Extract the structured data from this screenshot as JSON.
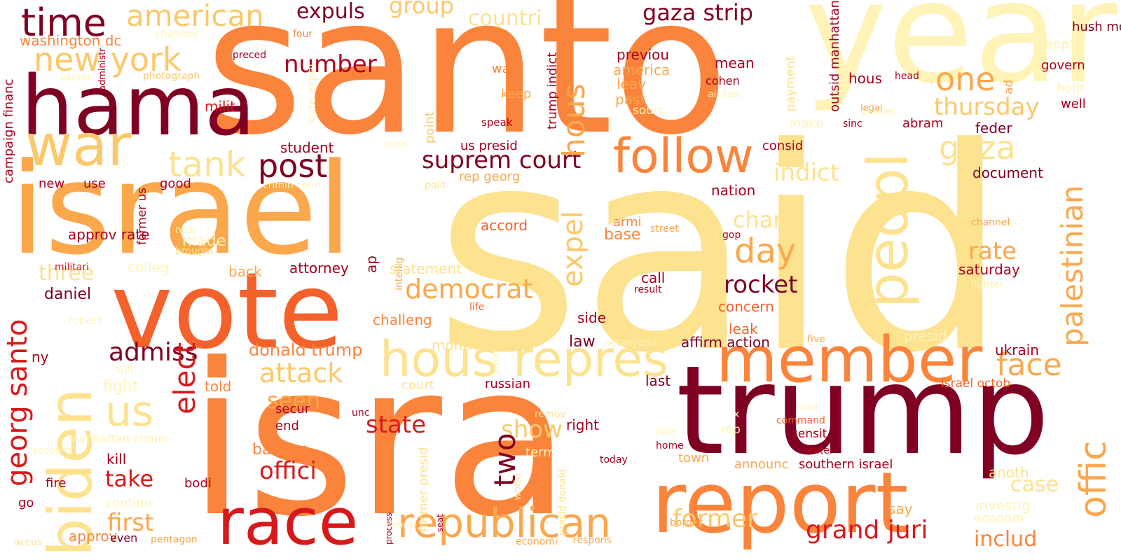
{
  "palette": {
    "c1": "#7f0022",
    "c2": "#a9001f",
    "c3": "#d7191c",
    "c4": "#e8402a",
    "c5": "#f4612a",
    "c6": "#fa843b",
    "c7": "#fba74b",
    "c8": "#fbc86a",
    "c9": "#fde28f",
    "c10": "#fff3b8"
  },
  "words": [
    {
      "text": "said",
      "color": "c9"
    },
    {
      "text": "santo",
      "color": "c6"
    },
    {
      "text": "isra",
      "color": "c6"
    },
    {
      "text": "year",
      "color": "c10"
    },
    {
      "text": "israel",
      "color": "c7"
    },
    {
      "text": "vote",
      "color": "c5"
    },
    {
      "text": "hama",
      "color": "c1"
    },
    {
      "text": "trump",
      "color": "c1"
    },
    {
      "text": "war",
      "color": "c8"
    },
    {
      "text": "member",
      "color": "c6"
    },
    {
      "text": "report",
      "color": "c6"
    },
    {
      "text": "race",
      "color": "c3"
    },
    {
      "text": "biden",
      "color": "c9"
    },
    {
      "text": "peopl",
      "color": "c9"
    },
    {
      "text": "follow",
      "color": "c6"
    },
    {
      "text": "hous repres",
      "color": "c9"
    },
    {
      "text": "republican",
      "color": "c7"
    },
    {
      "text": "time",
      "color": "c1"
    },
    {
      "text": "american",
      "color": "c8"
    },
    {
      "text": "new york",
      "color": "c8"
    },
    {
      "text": "tank",
      "color": "c9"
    },
    {
      "text": "post",
      "color": "c1"
    },
    {
      "text": "one",
      "color": "c7"
    },
    {
      "text": "gaza",
      "color": "c9"
    },
    {
      "text": "us",
      "color": "c9"
    },
    {
      "text": "elect",
      "color": "c3"
    },
    {
      "text": "georg santo",
      "color": "c3"
    },
    {
      "text": "offic",
      "color": "c7"
    },
    {
      "text": "palestinian",
      "color": "c7"
    },
    {
      "text": "day",
      "color": "c7"
    },
    {
      "text": "gaza strip",
      "color": "c1"
    },
    {
      "text": "expuls",
      "color": "c1"
    },
    {
      "text": "group",
      "color": "c8"
    },
    {
      "text": "countri",
      "color": "c9"
    },
    {
      "text": "thursday",
      "color": "c8"
    },
    {
      "text": "suprem court",
      "color": "c1"
    },
    {
      "text": "hous",
      "color": "c7"
    },
    {
      "text": "expel",
      "color": "c8"
    },
    {
      "text": "indict",
      "color": "c9"
    },
    {
      "text": "number",
      "color": "c2"
    },
    {
      "text": "rocket",
      "color": "c1"
    },
    {
      "text": "democrat",
      "color": "c7"
    },
    {
      "text": "charg",
      "color": "c9"
    },
    {
      "text": "rate",
      "color": "c7"
    },
    {
      "text": "face",
      "color": "c7"
    },
    {
      "text": "admiss",
      "color": "c1"
    },
    {
      "text": "attack",
      "color": "c8"
    },
    {
      "text": "seen",
      "color": "c7"
    },
    {
      "text": "state",
      "color": "c3"
    },
    {
      "text": "two",
      "color": "c1"
    },
    {
      "text": "show",
      "color": "c8"
    },
    {
      "text": "offici",
      "color": "c3"
    },
    {
      "text": "take",
      "color": "c3"
    },
    {
      "text": "first",
      "color": "c7"
    },
    {
      "text": "former",
      "color": "c8"
    },
    {
      "text": "grand juri",
      "color": "c3"
    },
    {
      "text": "includ",
      "color": "c6"
    },
    {
      "text": "case",
      "color": "c9"
    },
    {
      "text": "three",
      "color": "c9"
    },
    {
      "text": "donald trump",
      "color": "c6"
    },
    {
      "text": "washington dc",
      "color": "c6"
    },
    {
      "text": "campaign financ",
      "color": "c2"
    },
    {
      "text": "milit",
      "color": "c3"
    },
    {
      "text": "student",
      "color": "c2"
    },
    {
      "text": "new",
      "color": "c2"
    },
    {
      "text": "use",
      "color": "c2"
    },
    {
      "text": "former us",
      "color": "c2"
    },
    {
      "text": "good",
      "color": "c2"
    },
    {
      "text": "approv rate",
      "color": "c2"
    },
    {
      "text": "made",
      "color": "c10"
    },
    {
      "text": "colleg",
      "color": "c10"
    },
    {
      "text": "daniel",
      "color": "c1"
    },
    {
      "text": "back",
      "color": "c7"
    },
    {
      "text": "attorney",
      "color": "c2"
    },
    {
      "text": "statement",
      "color": "c9"
    },
    {
      "text": "challeng",
      "color": "c6"
    },
    {
      "text": "ny",
      "color": "c2"
    },
    {
      "text": "fight",
      "color": "c10"
    },
    {
      "text": "told",
      "color": "c6"
    },
    {
      "text": "secur",
      "color": "c2"
    },
    {
      "text": "end",
      "color": "c2"
    },
    {
      "text": "balloon",
      "color": "c6"
    },
    {
      "text": "kill",
      "color": "c2"
    },
    {
      "text": "fire",
      "color": "c2"
    },
    {
      "text": "bodi",
      "color": "c2"
    },
    {
      "text": "go",
      "color": "c2"
    },
    {
      "text": "approv",
      "color": "c6"
    },
    {
      "text": "even",
      "color": "c1"
    },
    {
      "text": "accus",
      "color": "c9"
    },
    {
      "text": "pentagon",
      "color": "c7"
    },
    {
      "text": "month",
      "color": "c9"
    },
    {
      "text": "court",
      "color": "c9"
    },
    {
      "text": "russian",
      "color": "c2"
    },
    {
      "text": "law",
      "color": "c1"
    },
    {
      "text": "side",
      "color": "c2"
    },
    {
      "text": "affirm action",
      "color": "c1"
    },
    {
      "text": "leak",
      "color": "c5"
    },
    {
      "text": "concern",
      "color": "c5"
    },
    {
      "text": "nation",
      "color": "c2"
    },
    {
      "text": "accord",
      "color": "c5"
    },
    {
      "text": "armi",
      "color": "c6"
    },
    {
      "text": "base",
      "color": "c6"
    },
    {
      "text": "call",
      "color": "c2"
    },
    {
      "text": "result",
      "color": "c2"
    },
    {
      "text": "street",
      "color": "c7"
    },
    {
      "text": "previou",
      "color": "c2"
    },
    {
      "text": "america",
      "color": "c7"
    },
    {
      "text": "leav",
      "color": "c7"
    },
    {
      "text": "past",
      "color": "c7"
    },
    {
      "text": "sourc",
      "color": "c10"
    },
    {
      "text": "mean",
      "color": "c2"
    },
    {
      "text": "cohen",
      "color": "c2"
    },
    {
      "text": "air forc",
      "color": "c10"
    },
    {
      "text": "want",
      "color": "c6"
    },
    {
      "text": "keep",
      "color": "c7"
    },
    {
      "text": "speak",
      "color": "c2"
    },
    {
      "text": "us presid",
      "color": "c2"
    },
    {
      "text": "rep georg",
      "color": "c7"
    },
    {
      "text": "consid",
      "color": "c2"
    },
    {
      "text": "abram",
      "color": "c2"
    },
    {
      "text": "make",
      "color": "c10"
    },
    {
      "text": "sinc",
      "color": "c2"
    },
    {
      "text": "feder",
      "color": "c1"
    },
    {
      "text": "document",
      "color": "c1"
    },
    {
      "text": "hous",
      "color": "c2"
    },
    {
      "text": "head",
      "color": "c2"
    },
    {
      "text": "hush money",
      "color": "c1"
    },
    {
      "text": "ad",
      "color": "c7"
    },
    {
      "text": "applic",
      "color": "c10"
    },
    {
      "text": "govern",
      "color": "c2"
    },
    {
      "text": "hold",
      "color": "c10"
    },
    {
      "text": "well",
      "color": "c2"
    },
    {
      "text": "channel",
      "color": "c7"
    },
    {
      "text": "saturday",
      "color": "c2"
    },
    {
      "text": "fighter",
      "color": "c10"
    },
    {
      "text": "ukrain",
      "color": "c2"
    },
    {
      "text": "presid",
      "color": "c10"
    },
    {
      "text": "five",
      "color": "c7"
    },
    {
      "text": "israel octob",
      "color": "c5"
    },
    {
      "text": "sensit",
      "color": "c2"
    },
    {
      "text": "command",
      "color": "c5"
    },
    {
      "text": "reuter",
      "color": "c2"
    },
    {
      "text": "announc",
      "color": "c7"
    },
    {
      "text": "southern israel",
      "color": "c2"
    },
    {
      "text": "town",
      "color": "c7"
    },
    {
      "text": "home",
      "color": "c2"
    },
    {
      "text": "rule",
      "color": "c10"
    },
    {
      "text": "term",
      "color": "c10"
    },
    {
      "text": "right",
      "color": "c2"
    },
    {
      "text": "remov",
      "color": "c9"
    },
    {
      "text": "rep",
      "color": "c10"
    },
    {
      "text": "x",
      "color": "c10"
    },
    {
      "text": "anoth",
      "color": "c9"
    },
    {
      "text": "investig",
      "color": "c10"
    },
    {
      "text": "say",
      "color": "c7"
    },
    {
      "text": "econom",
      "color": "c10"
    },
    {
      "text": "border",
      "color": "c7"
    },
    {
      "text": "economi",
      "color": "c7"
    },
    {
      "text": "respons",
      "color": "c7"
    },
    {
      "text": "today",
      "color": "c2"
    },
    {
      "text": "last",
      "color": "c1"
    },
    {
      "text": "unc",
      "color": "c2"
    },
    {
      "text": "manhattan crimin",
      "color": "c10"
    },
    {
      "text": "account",
      "color": "c10"
    },
    {
      "text": "continu",
      "color": "c10"
    },
    {
      "text": "still",
      "color": "c10"
    },
    {
      "text": "robert",
      "color": "c10"
    },
    {
      "text": "militari",
      "color": "c3"
    },
    {
      "text": "brought",
      "color": "c9"
    },
    {
      "text": "near",
      "color": "c10"
    },
    {
      "text": "life",
      "color": "c5"
    },
    {
      "text": "crimin court",
      "color": "c10"
    },
    {
      "text": "polit",
      "color": "c9"
    },
    {
      "text": "hundr",
      "color": "c10"
    },
    {
      "text": "polit",
      "color": "c10"
    },
    {
      "text": "chamber",
      "color": "c10"
    },
    {
      "text": "four",
      "color": "c6"
    },
    {
      "text": "preced",
      "color": "c2"
    },
    {
      "text": "earlier",
      "color": "c10"
    },
    {
      "text": "photograph",
      "color": "c8"
    },
    {
      "text": "week",
      "color": "c10"
    },
    {
      "text": "peaker",
      "color": "c10"
    },
    {
      "text": "gop",
      "color": "c2"
    },
    {
      "text": "netanyahu",
      "color": "c10"
    },
    {
      "text": "inform",
      "color": "c10"
    },
    {
      "text": "administr",
      "color": "c2"
    },
    {
      "text": "legal",
      "color": "c7"
    },
    {
      "text": "least",
      "color": "c10"
    },
    {
      "text": "process",
      "color": "c2"
    },
    {
      "text": "seat",
      "color": "c2"
    },
    {
      "text": "world",
      "color": "c9"
    },
    {
      "text": "presid donald",
      "color": "c9"
    },
    {
      "text": "former presid",
      "color": "c9"
    },
    {
      "text": "infiltr",
      "color": "c10"
    },
    {
      "text": "vote expel",
      "color": "c10"
    },
    {
      "text": "point",
      "color": "c8"
    },
    {
      "text": "ap",
      "color": "c2"
    },
    {
      "text": "intellig",
      "color": "c7"
    },
    {
      "text": "trump indict",
      "color": "c2"
    },
    {
      "text": "payment",
      "color": "c9"
    },
    {
      "text": "outsid manhattan",
      "color": "c2"
    }
  ]
}
